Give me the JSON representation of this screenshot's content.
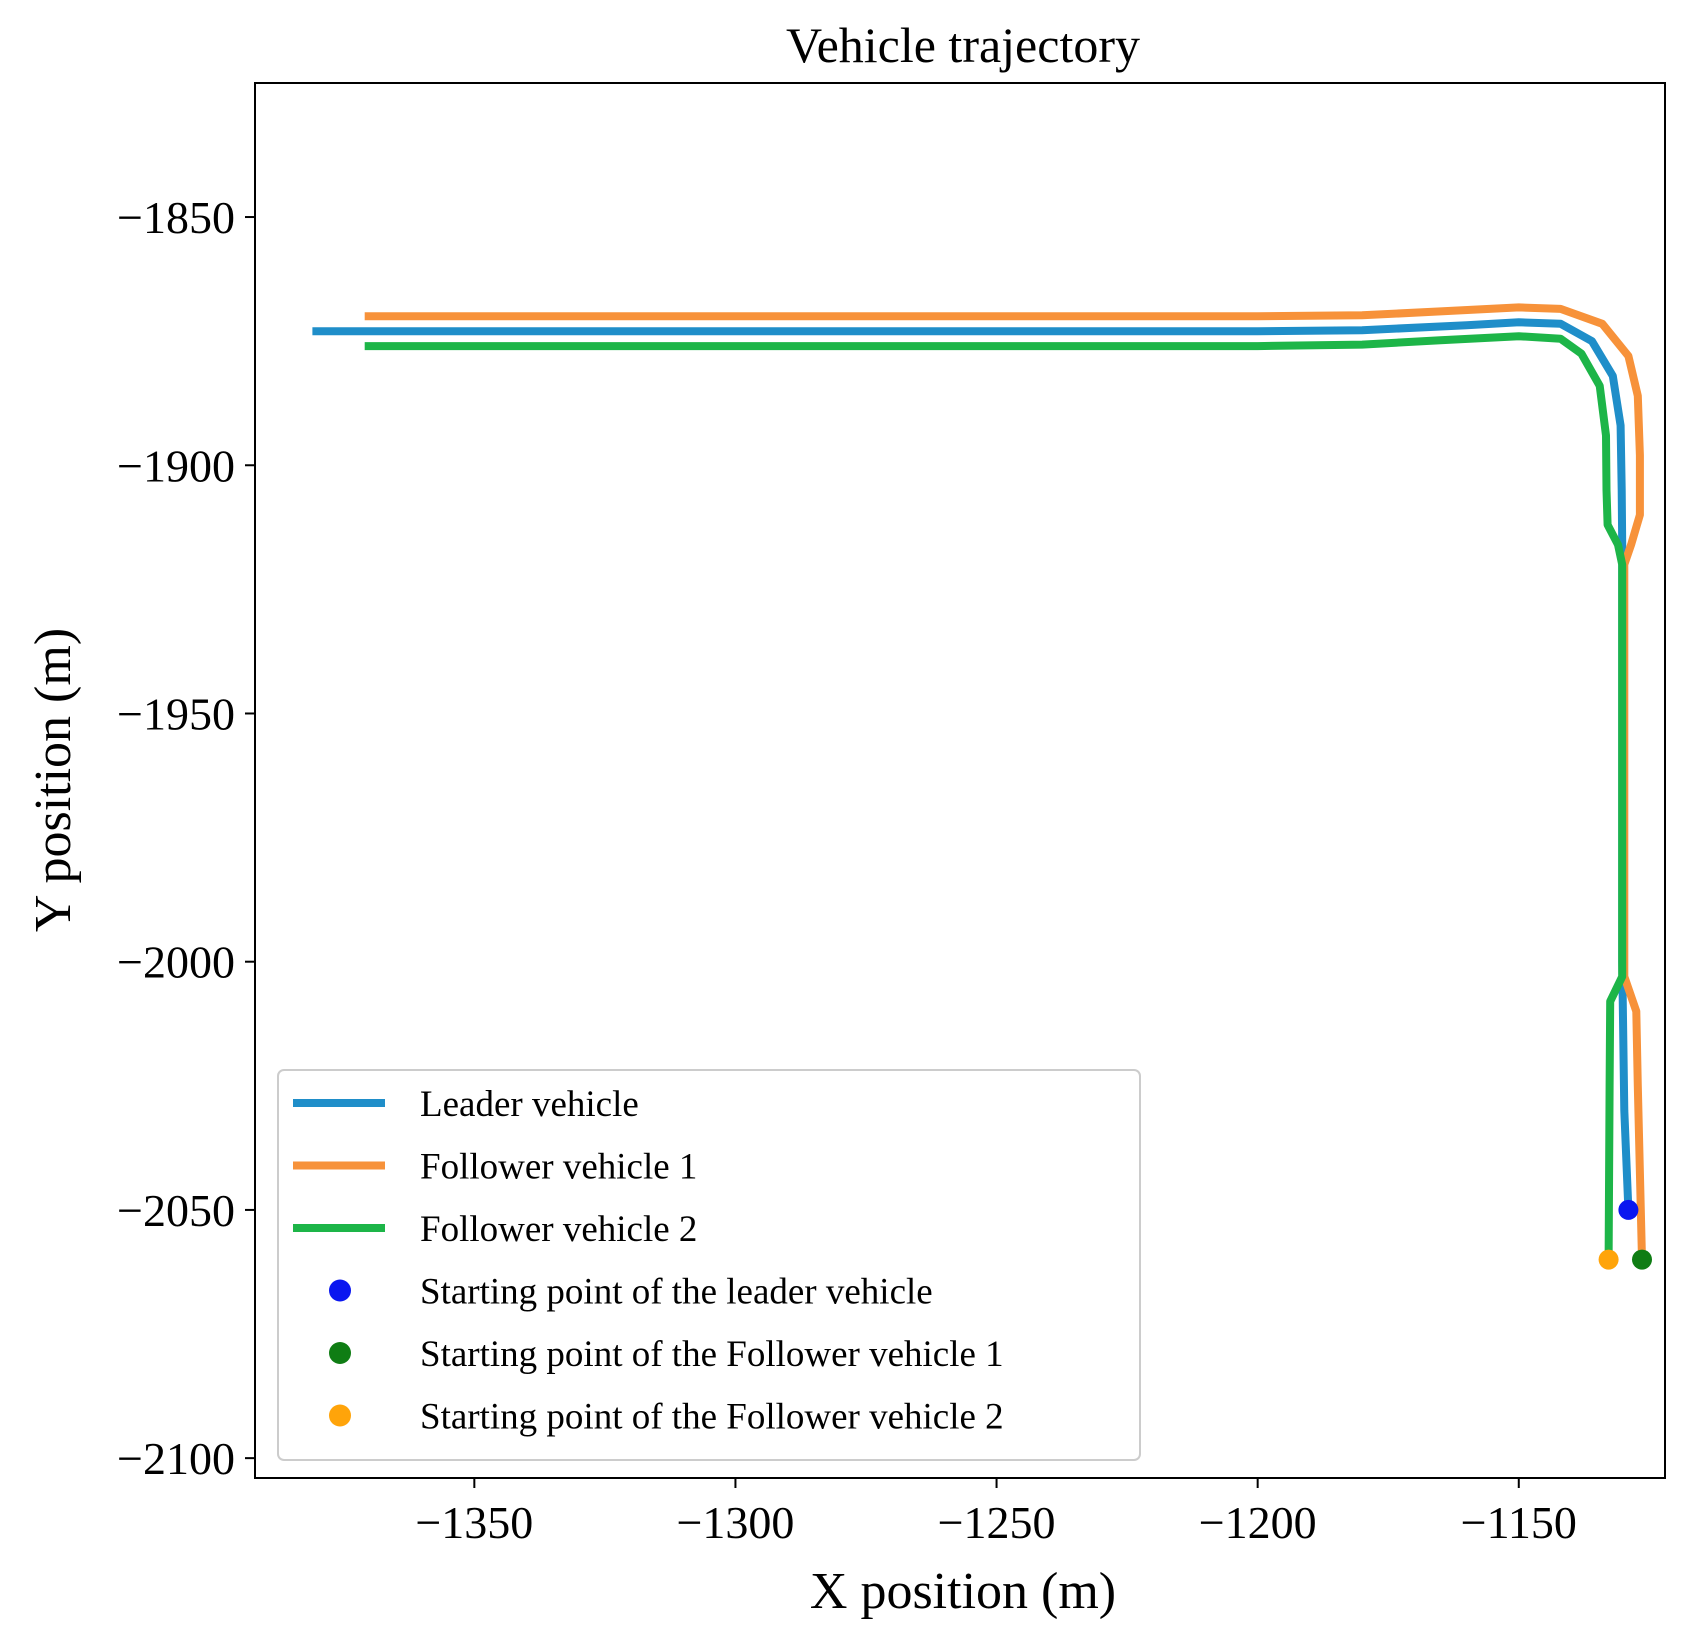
{
  "chart_data": {
    "type": "line",
    "title": "Vehicle trajectory",
    "xlabel": "X position (m)",
    "ylabel": "Y position (m)",
    "xlim": [
      -1392,
      -1122
    ],
    "ylim": [
      -2104,
      -1823
    ],
    "xticks": [
      -1350,
      -1300,
      -1250,
      -1200,
      -1150
    ],
    "yticks": [
      -1850,
      -1900,
      -1950,
      -2000,
      -2050,
      -2100
    ],
    "xtick_labels": [
      "−1350",
      "−1300",
      "−1250",
      "−1200",
      "−1150"
    ],
    "ytick_labels": [
      "−1850",
      "−1900",
      "−1950",
      "−2000",
      "−2050",
      "−2100"
    ],
    "grid": false,
    "legend_position": "lower-left",
    "series": [
      {
        "name": "Leader vehicle",
        "color": "#1f8ec9",
        "points": [
          [
            -1381,
            -1873
          ],
          [
            -1300,
            -1873
          ],
          [
            -1200,
            -1873
          ],
          [
            -1180,
            -1872.8
          ],
          [
            -1160,
            -1871.8
          ],
          [
            -1150,
            -1871.2
          ],
          [
            -1142,
            -1871.5
          ],
          [
            -1136,
            -1875
          ],
          [
            -1132,
            -1882
          ],
          [
            -1130.5,
            -1892
          ],
          [
            -1130.3,
            -1905
          ],
          [
            -1130.2,
            -1916
          ],
          [
            -1130.2,
            -1950
          ],
          [
            -1130.2,
            -2000
          ],
          [
            -1129.8,
            -2030
          ],
          [
            -1129,
            -2050
          ]
        ]
      },
      {
        "name": "Follower vehicle 1",
        "color": "#f7923a",
        "points": [
          [
            -1371,
            -1870
          ],
          [
            -1300,
            -1870
          ],
          [
            -1200,
            -1870
          ],
          [
            -1180,
            -1869.8
          ],
          [
            -1165,
            -1869
          ],
          [
            -1150,
            -1868.2
          ],
          [
            -1142,
            -1868.5
          ],
          [
            -1134,
            -1871.5
          ],
          [
            -1129,
            -1878
          ],
          [
            -1127.2,
            -1886
          ],
          [
            -1126.8,
            -1898
          ],
          [
            -1126.8,
            -1910
          ],
          [
            -1128.5,
            -1916
          ],
          [
            -1129.8,
            -1920
          ],
          [
            -1129.8,
            -1950
          ],
          [
            -1129.8,
            -2003
          ],
          [
            -1127.5,
            -2010
          ],
          [
            -1127.2,
            -2025
          ],
          [
            -1126.4,
            -2060
          ]
        ]
      },
      {
        "name": "Follower vehicle 2",
        "color": "#1db548",
        "points": [
          [
            -1371,
            -1876
          ],
          [
            -1300,
            -1876
          ],
          [
            -1200,
            -1876
          ],
          [
            -1180,
            -1875.7
          ],
          [
            -1165,
            -1874.8
          ],
          [
            -1150,
            -1874
          ],
          [
            -1142,
            -1874.5
          ],
          [
            -1138,
            -1877.5
          ],
          [
            -1134.5,
            -1884
          ],
          [
            -1133.3,
            -1894
          ],
          [
            -1133.2,
            -1905
          ],
          [
            -1133,
            -1912
          ],
          [
            -1131,
            -1916
          ],
          [
            -1130.2,
            -1920
          ],
          [
            -1130.2,
            -1950
          ],
          [
            -1130.2,
            -2003
          ],
          [
            -1132.5,
            -2008
          ],
          [
            -1132.6,
            -2025
          ],
          [
            -1132.8,
            -2060
          ]
        ]
      }
    ],
    "markers": [
      {
        "name": "Starting point of the leader vehicle",
        "color": "#0a16f0",
        "x": -1129,
        "y": -2050
      },
      {
        "name": "Starting point of the Follower vehicle 1",
        "color": "#0f7d14",
        "x": -1126.4,
        "y": -2060
      },
      {
        "name": "Starting point of the Follower vehicle 2",
        "color": "#ffa40a",
        "x": -1132.8,
        "y": -2060
      }
    ]
  }
}
